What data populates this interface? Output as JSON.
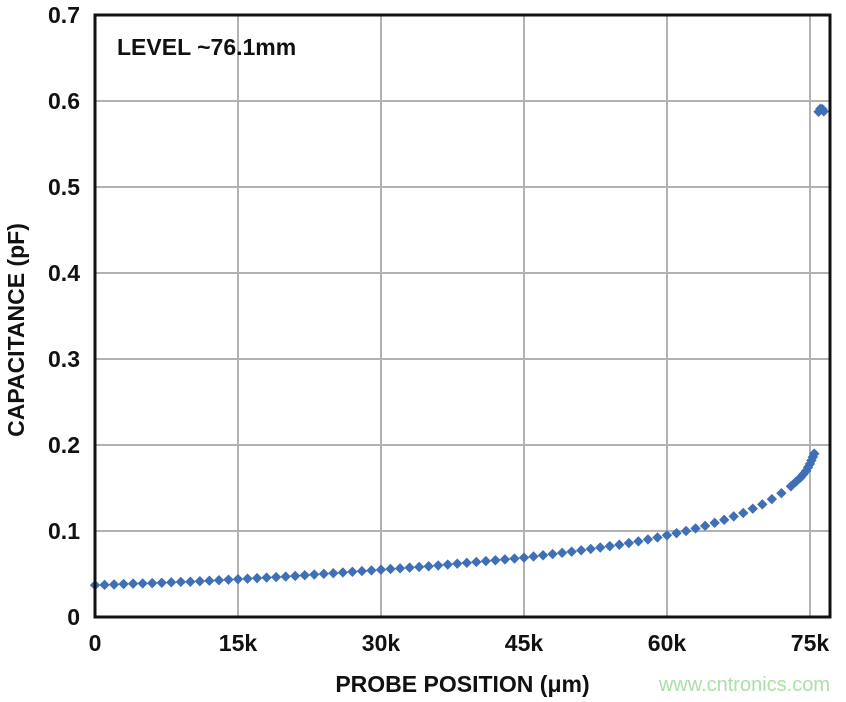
{
  "chart_data": {
    "type": "scatter",
    "xlabel": "PROBE POSITION (μm)",
    "ylabel": "CAPACITANCE (pF)",
    "annotation": "LEVEL ~76.1mm",
    "watermark": "www.cntronics.com",
    "xlim": [
      0,
      77100
    ],
    "ylim": [
      0,
      0.7
    ],
    "grid": true,
    "legend": "none",
    "x_ticks": [
      {
        "v": 0,
        "label": "0"
      },
      {
        "v": 15000,
        "label": "15k"
      },
      {
        "v": 30000,
        "label": "30k"
      },
      {
        "v": 45000,
        "label": "45k"
      },
      {
        "v": 60000,
        "label": "60k"
      },
      {
        "v": 75000,
        "label": "75k"
      }
    ],
    "y_ticks": [
      {
        "v": 0,
        "label": "0"
      },
      {
        "v": 0.1,
        "label": "0.1"
      },
      {
        "v": 0.2,
        "label": "0.2"
      },
      {
        "v": 0.3,
        "label": "0.3"
      },
      {
        "v": 0.4,
        "label": "0.4"
      },
      {
        "v": 0.5,
        "label": "0.5"
      },
      {
        "v": 0.6,
        "label": "0.6"
      },
      {
        "v": 0.7,
        "label": "0.7"
      }
    ],
    "marker": {
      "shape": "diamond",
      "size": 10.4
    },
    "colors": {
      "marker": "#3e6fb7",
      "grid": "#b2b2b2",
      "axis": "#111111",
      "text": "#111111",
      "watermark": "#aadfa8",
      "background": "#ffffff"
    },
    "series": [
      {
        "name": "capacitance-vs-position",
        "x": [
          0,
          1000,
          2000,
          3000,
          4000,
          5000,
          6000,
          7000,
          8000,
          9000,
          10000,
          11000,
          12000,
          13000,
          14000,
          15000,
          16000,
          17000,
          18000,
          19000,
          20000,
          21000,
          22000,
          23000,
          24000,
          25000,
          26000,
          27000,
          28000,
          29000,
          30000,
          31000,
          32000,
          33000,
          34000,
          35000,
          36000,
          37000,
          38000,
          39000,
          40000,
          41000,
          42000,
          43000,
          44000,
          45000,
          46000,
          47000,
          48000,
          49000,
          50000,
          51000,
          52000,
          53000,
          54000,
          55000,
          56000,
          57000,
          58000,
          59000,
          60000,
          61000,
          62000,
          63000,
          64000,
          65000,
          66000,
          67000,
          68000,
          69000,
          70000,
          71000,
          72000,
          73000,
          73500,
          74000,
          74300,
          74600,
          74800,
          75000,
          75150,
          75300,
          75450
        ],
        "y": [
          0.037,
          0.0374,
          0.0378,
          0.0383,
          0.0388,
          0.039,
          0.0394,
          0.0398,
          0.0403,
          0.0408,
          0.041,
          0.0416,
          0.0422,
          0.0428,
          0.0434,
          0.044,
          0.0446,
          0.0452,
          0.0458,
          0.0464,
          0.047,
          0.0478,
          0.0486,
          0.0494,
          0.0502,
          0.051,
          0.0518,
          0.0526,
          0.0534,
          0.0542,
          0.055,
          0.0558,
          0.0566,
          0.0574,
          0.0582,
          0.059,
          0.06,
          0.061,
          0.062,
          0.063,
          0.064,
          0.065,
          0.066,
          0.067,
          0.068,
          0.069,
          0.0704,
          0.0718,
          0.0732,
          0.0746,
          0.076,
          0.0776,
          0.0792,
          0.0808,
          0.0824,
          0.084,
          0.086,
          0.088,
          0.0902,
          0.0925,
          0.095,
          0.0975,
          0.1,
          0.103,
          0.106,
          0.1095,
          0.113,
          0.117,
          0.121,
          0.126,
          0.131,
          0.137,
          0.144,
          0.152,
          0.157,
          0.162,
          0.166,
          0.17,
          0.174,
          0.178,
          0.182,
          0.186,
          0.19
        ]
      },
      {
        "name": "level-spike",
        "x": [
          75900,
          76100,
          76300,
          76450
        ],
        "y": [
          0.5875,
          0.591,
          0.5905,
          0.588
        ]
      }
    ]
  }
}
